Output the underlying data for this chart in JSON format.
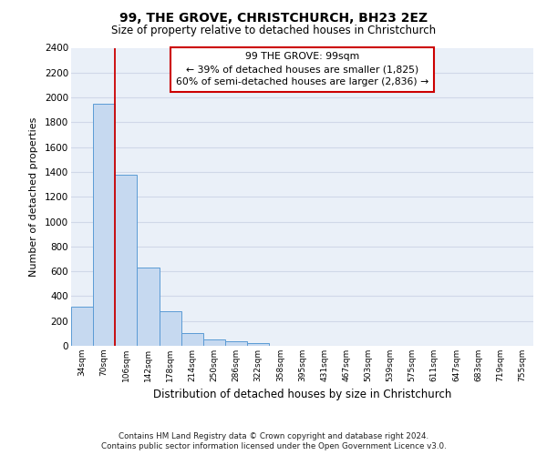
{
  "title1": "99, THE GROVE, CHRISTCHURCH, BH23 2EZ",
  "title2": "Size of property relative to detached houses in Christchurch",
  "xlabel": "Distribution of detached houses by size in Christchurch",
  "ylabel": "Number of detached properties",
  "footer1": "Contains HM Land Registry data © Crown copyright and database right 2024.",
  "footer2": "Contains public sector information licensed under the Open Government Licence v3.0.",
  "bin_labels": [
    "34sqm",
    "70sqm",
    "106sqm",
    "142sqm",
    "178sqm",
    "214sqm",
    "250sqm",
    "286sqm",
    "322sqm",
    "358sqm",
    "395sqm",
    "431sqm",
    "467sqm",
    "503sqm",
    "539sqm",
    "575sqm",
    "611sqm",
    "647sqm",
    "683sqm",
    "719sqm",
    "755sqm"
  ],
  "bar_values": [
    315,
    1950,
    1375,
    630,
    280,
    100,
    48,
    35,
    25,
    0,
    0,
    0,
    0,
    0,
    0,
    0,
    0,
    0,
    0,
    0,
    0
  ],
  "bar_color": "#c6d9f0",
  "bar_edge_color": "#5b9bd5",
  "grid_color": "#d0d8e8",
  "background_color": "#eaf0f8",
  "annotation_line1": "99 THE GROVE: 99sqm",
  "annotation_line2": "← 39% of detached houses are smaller (1,825)",
  "annotation_line3": "60% of semi-detached houses are larger (2,836) →",
  "annotation_box_facecolor": "#ffffff",
  "annotation_box_edgecolor": "#cc0000",
  "red_line_x": 1.5,
  "ylim_max": 2400,
  "yticks": [
    0,
    200,
    400,
    600,
    800,
    1000,
    1200,
    1400,
    1600,
    1800,
    2000,
    2200,
    2400
  ]
}
